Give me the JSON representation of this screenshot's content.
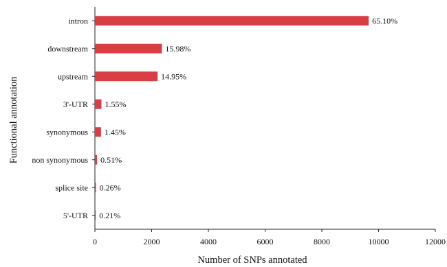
{
  "chart_data": {
    "type": "bar",
    "orientation": "horizontal",
    "categories": [
      "intron",
      "downstream",
      "upstream",
      "3'-UTR",
      "synonymous",
      "non synonymous",
      "splice site",
      "5'-UTR"
    ],
    "values": [
      9650,
      2360,
      2210,
      230,
      215,
      75,
      40,
      30
    ],
    "data_labels": [
      "65.10%",
      "15.98%",
      "14.95%",
      "1.55%",
      "1.45%",
      "0.51%",
      "0.26%",
      "0.21%"
    ],
    "title": "",
    "xlabel": "Number of SNPs annotated",
    "ylabel": "Functional annotation",
    "xlim": [
      0,
      12000
    ],
    "xticks": [
      "0",
      "2000",
      "4000",
      "6000",
      "8000",
      "10000",
      "12000"
    ],
    "grid": false,
    "legend": "none",
    "bar_color": "#d93e45"
  }
}
